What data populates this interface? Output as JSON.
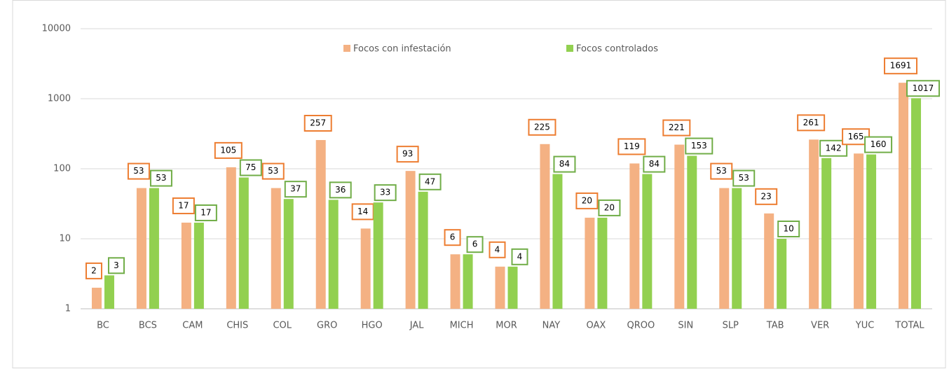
{
  "chart_data": {
    "type": "bar",
    "categories": [
      "BC",
      "BCS",
      "CAM",
      "CHIS",
      "COL",
      "GRO",
      "HGO",
      "JAL",
      "MICH",
      "MOR",
      "NAY",
      "OAX",
      "QROO",
      "SIN",
      "SLP",
      "TAB",
      "VER",
      "YUC",
      "TOTAL"
    ],
    "series": [
      {
        "name": "Focos con infestación",
        "color": "#f4b183",
        "label_border": "#ed7d31",
        "values": [
          2,
          53,
          17,
          105,
          53,
          257,
          14,
          93,
          6,
          4,
          225,
          20,
          119,
          221,
          53,
          23,
          261,
          165,
          1691
        ]
      },
      {
        "name": "Focos controlados",
        "color": "#92d050",
        "label_border": "#70ad47",
        "values": [
          3,
          53,
          17,
          75,
          37,
          36,
          33,
          47,
          6,
          4,
          84,
          20,
          84,
          153,
          53,
          10,
          142,
          160,
          1017
        ]
      }
    ],
    "ylim": [
      1,
      10000
    ],
    "yticks": [
      1,
      10,
      100,
      1000,
      10000
    ],
    "log_scale": true,
    "grid": true,
    "legend_position": "top"
  }
}
